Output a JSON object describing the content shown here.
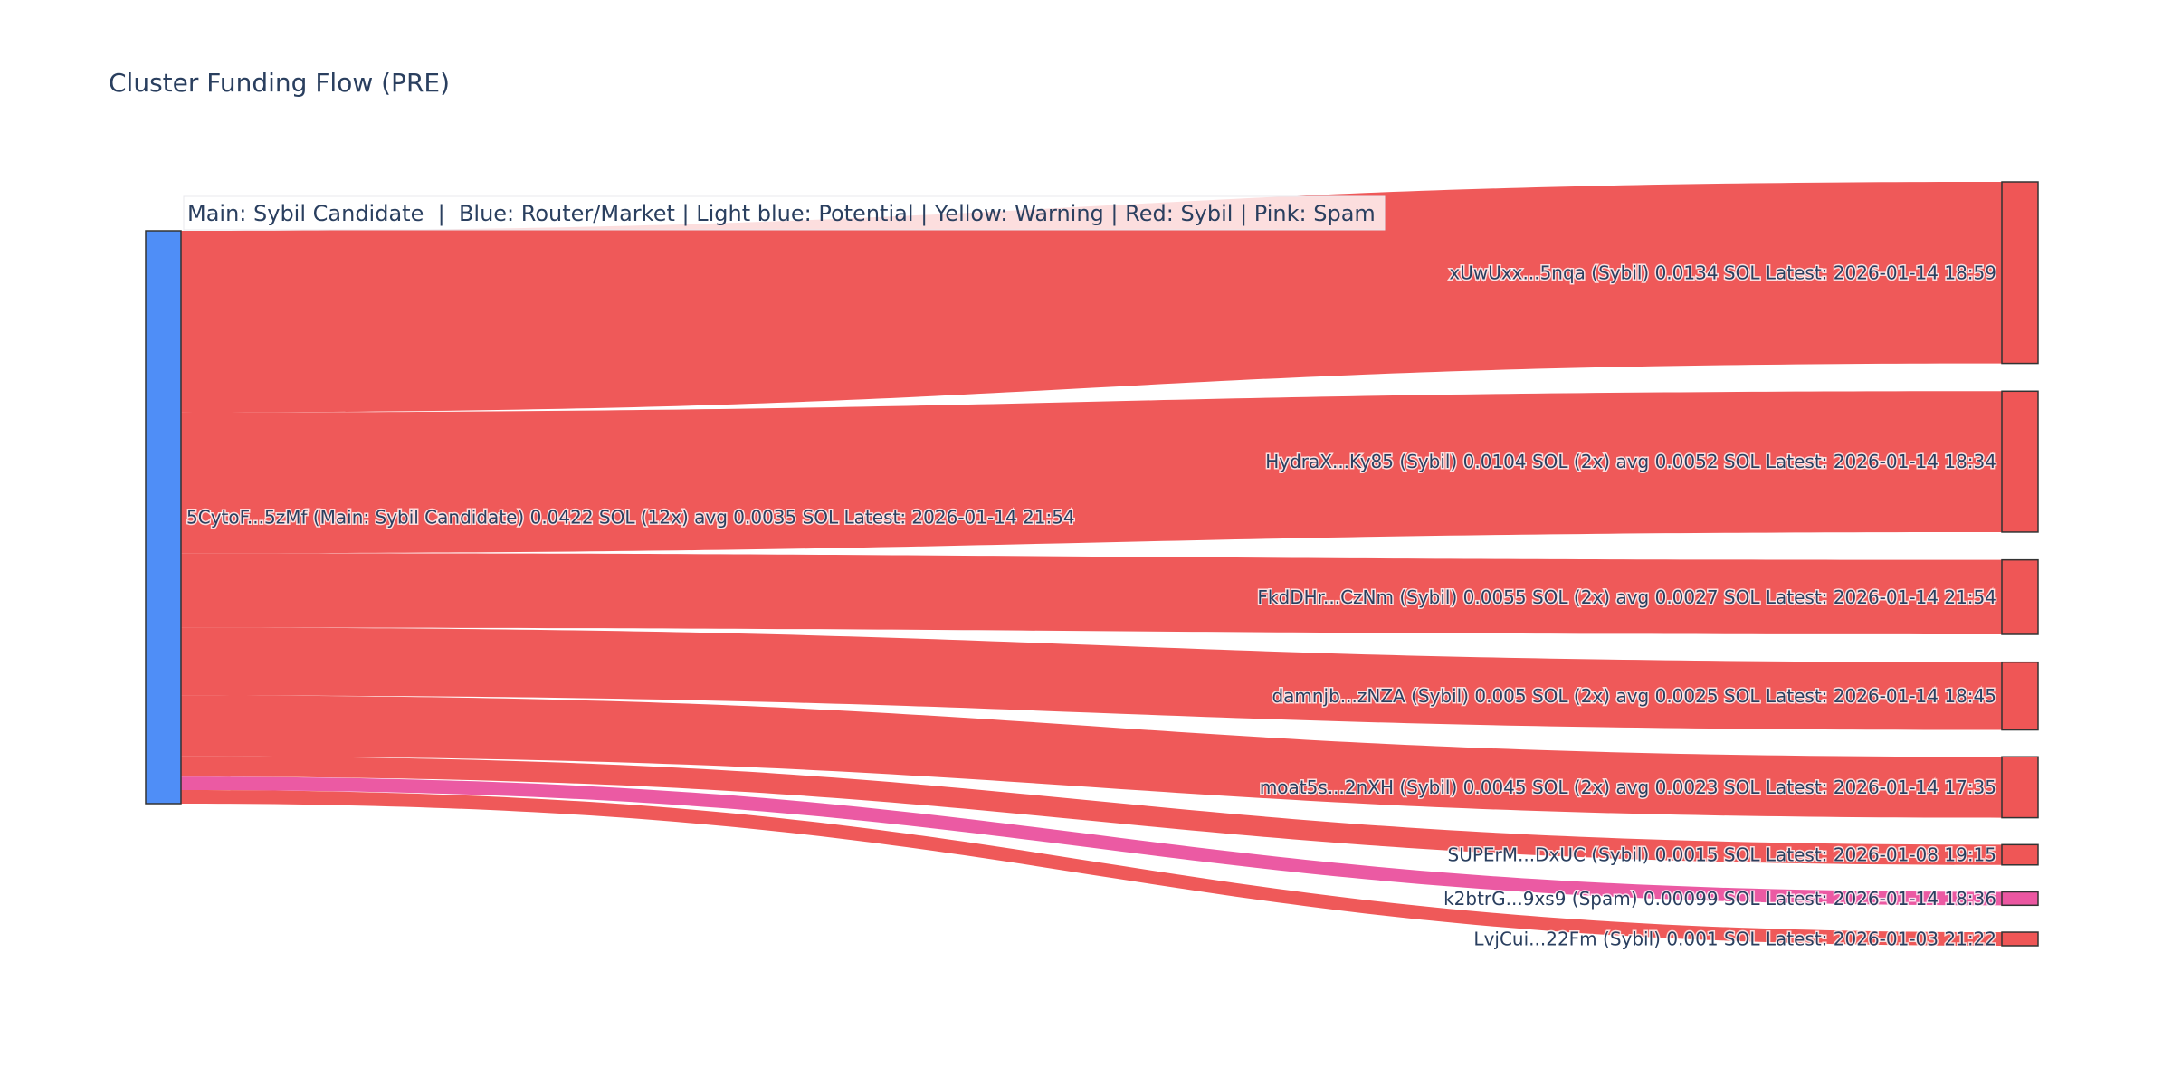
{
  "chart_data": {
    "type": "sankey",
    "title": "Cluster Funding Flow (PRE)",
    "annotation": "Main: Sybil Candidate  |  Blue: Router/Market | Light blue: Potential | Yellow: Warning | Red: Sybil | Pink: Spam",
    "colors": {
      "main": "#4f8ef7",
      "sybil": "#ef5656",
      "spam": "#eb57a1",
      "node_border": "#333333"
    },
    "source": {
      "label": "5CytoF...5zMf (Main: Sybil Candidate) 0.0422 SOL (12x) avg 0.0035 SOL Latest: 2026-01-14 21:54",
      "category": "main",
      "value": 0.0422
    },
    "targets": [
      {
        "label": "xUwUxx...5nqa (Sybil) 0.0134 SOL Latest: 2026-01-14 18:59",
        "category": "sybil",
        "value": 0.0134
      },
      {
        "label": "HydraX...Ky85 (Sybil) 0.0104 SOL (2x) avg 0.0052 SOL Latest: 2026-01-14 18:34",
        "category": "sybil",
        "value": 0.0104
      },
      {
        "label": "FkdDHr...CzNm (Sybil) 0.0055 SOL (2x) avg 0.0027 SOL Latest: 2026-01-14 21:54",
        "category": "sybil",
        "value": 0.0055
      },
      {
        "label": "damnjb...zNZA (Sybil) 0.005 SOL (2x) avg 0.0025 SOL Latest: 2026-01-14 18:45",
        "category": "sybil",
        "value": 0.005
      },
      {
        "label": "moat5s...2nXH (Sybil) 0.0045 SOL (2x) avg 0.0023 SOL Latest: 2026-01-14 17:35",
        "category": "sybil",
        "value": 0.0045
      },
      {
        "label": "SUPErM...DxUC (Sybil) 0.0015 SOL Latest: 2026-01-08 19:15",
        "category": "sybil",
        "value": 0.0015
      },
      {
        "label": "k2btrG...9xs9 (Spam) 0.00099 SOL Latest: 2026-01-14 18:36",
        "category": "spam",
        "value": 0.00099
      },
      {
        "label": "LvjCui...22Fm (Sybil) 0.001 SOL Latest: 2026-01-03 21:22",
        "category": "sybil",
        "value": 0.001
      }
    ]
  }
}
